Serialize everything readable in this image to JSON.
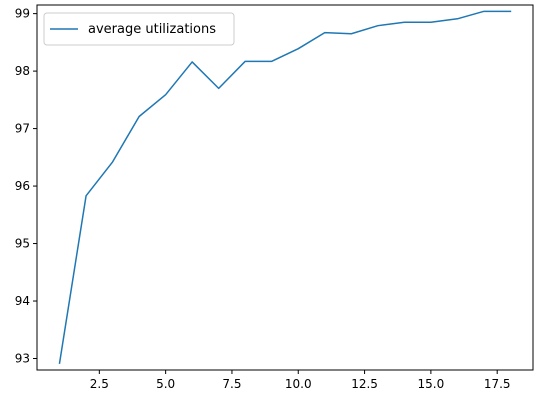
{
  "chart_data": {
    "type": "line",
    "title": "",
    "xlabel": "",
    "ylabel": "",
    "x": [
      1,
      2,
      3,
      4,
      5,
      6,
      7,
      8,
      9,
      10,
      11,
      12,
      13,
      14,
      15,
      16,
      17,
      18
    ],
    "series": [
      {
        "name": "average utilizations",
        "color": "#1f77b4",
        "values": [
          92.92,
          95.83,
          96.42,
          97.21,
          97.59,
          98.16,
          97.7,
          98.17,
          98.17,
          98.39,
          98.67,
          98.65,
          98.79,
          98.85,
          98.85,
          98.91,
          99.04,
          99.04
        ]
      }
    ],
    "xlim": [
      0.15,
      18.85
    ],
    "ylim": [
      92.8,
      99.15
    ],
    "xticks": [
      2.5,
      5.0,
      7.5,
      10.0,
      12.5,
      15.0,
      17.5
    ],
    "xtick_labels": [
      "2.5",
      "5.0",
      "7.5",
      "10.0",
      "12.5",
      "15.0",
      "17.5"
    ],
    "yticks": [
      93,
      94,
      95,
      96,
      97,
      98,
      99
    ],
    "ytick_labels": [
      "93",
      "94",
      "95",
      "96",
      "97",
      "98",
      "99"
    ],
    "grid": false,
    "legend": {
      "position": "top-left"
    }
  }
}
